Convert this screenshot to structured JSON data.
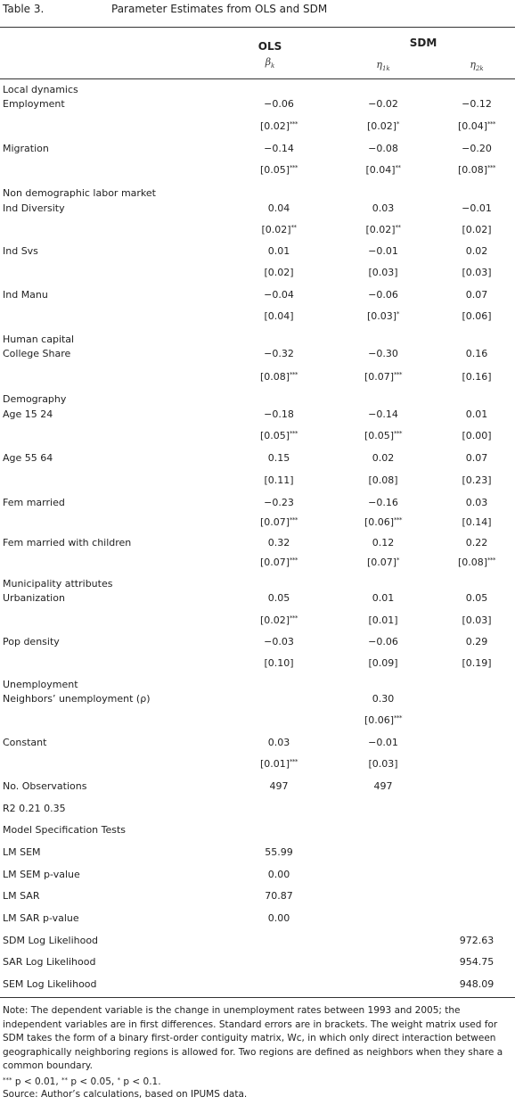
{
  "table": {
    "number": "Table 3.",
    "title": "Parameter Estimates from OLS and SDM"
  },
  "headers": {
    "ols": "OLS",
    "sdm": "SDM",
    "beta": "β",
    "beta_sub": "k",
    "eta1": "η",
    "eta1_sub": "1k",
    "eta2": "η",
    "eta2_sub": "2k"
  },
  "rows": {
    "local_dynamics": "Local dynamics",
    "employment": {
      "label": "Employment",
      "c1": "−0.06",
      "c2": "−0.02",
      "c3": "−0.12",
      "s1": "[0.02]",
      "s1s": "***",
      "s2": "[0.02]",
      "s2s": "*",
      "s3": "[0.04]",
      "s3s": "***"
    },
    "migration": {
      "label": "Migration",
      "c1": "−0.14",
      "c2": "−0.08",
      "c3": "−0.20",
      "s1": "[0.05]",
      "s1s": "***",
      "s2": "[0.04]",
      "s2s": "**",
      "s3": "[0.08]",
      "s3s": "***"
    },
    "non_demo": "Non demographic labor market",
    "ind_diversity": {
      "label": "Ind Diversity",
      "c1": "0.04",
      "c2": "0.03",
      "c3": "−0.01",
      "s1": "[0.02]",
      "s1s": "**",
      "s2": "[0.02]",
      "s2s": "**",
      "s3": "[0.02]",
      "s3s": ""
    },
    "ind_svs": {
      "label": "Ind Svs",
      "c1": "0.01",
      "c2": "−0.01",
      "c3": "0.02",
      "s1": "[0.02]",
      "s1s": "",
      "s2": "[0.03]",
      "s2s": "",
      "s3": "[0.03]",
      "s3s": ""
    },
    "ind_manu": {
      "label": "Ind Manu",
      "c1": "−0.04",
      "c2": "−0.06",
      "c3": "0.07",
      "s1": "[0.04]",
      "s1s": "",
      "s2": "[0.03]",
      "s2s": "*",
      "s3": "[0.06]",
      "s3s": ""
    },
    "human_capital": "Human capital",
    "college_share": {
      "label": "College Share",
      "c1": "−0.32",
      "c2": "−0.30",
      "c3": "0.16",
      "s1": "[0.08]",
      "s1s": "***",
      "s2": "[0.07]",
      "s2s": "***",
      "s3": "[0.16]",
      "s3s": ""
    },
    "demography": "Demography",
    "age_15_24": {
      "label": "Age 15 24",
      "c1": "−0.18",
      "c2": "−0.14",
      "c3": "0.01",
      "s1": "[0.05]",
      "s1s": "***",
      "s2": "[0.05]",
      "s2s": "***",
      "s3": "[0.00]",
      "s3s": ""
    },
    "age_55_64": {
      "label": "Age 55 64",
      "c1": "0.15",
      "c2": "0.02",
      "c3": "0.07",
      "s1": "[0.11]",
      "s1s": "",
      "s2": "[0.08]",
      "s2s": "",
      "s3": "[0.23]",
      "s3s": ""
    },
    "fem_married": {
      "label": "Fem married",
      "c1": "−0.23",
      "c2": "−0.16",
      "c3": "0.03",
      "s1": "[0.07]",
      "s1s": "***",
      "s2": "[0.06]",
      "s2s": "***",
      "s3": "[0.14]",
      "s3s": ""
    },
    "fem_married_children": {
      "label": "Fem married with children",
      "c1": "0.32",
      "c2": "0.12",
      "c3": "0.22",
      "s1": "[0.07]",
      "s1s": "***",
      "s2": "[0.07]",
      "s2s": "*",
      "s3": "[0.08]",
      "s3s": "***"
    },
    "municipality": "Municipality attributes",
    "urbanization": {
      "label": "Urbanization",
      "c1": "0.05",
      "c2": "0.01",
      "c3": "0.05",
      "s1": "[0.02]",
      "s1s": "***",
      "s2": "[0.01]",
      "s2s": "",
      "s3": "[0.03]",
      "s3s": ""
    },
    "pop_density": {
      "label": "Pop density",
      "c1": "−0.03",
      "c2": "−0.06",
      "c3": "0.29",
      "s1": "[0.10]",
      "s1s": "",
      "s2": "[0.09]",
      "s2s": "",
      "s3": "[0.19]",
      "s3s": ""
    },
    "unemployment": "Unemployment",
    "neighbors": {
      "label": "Neighbors’ unemployment (ρ)",
      "c2": "0.30",
      "s2": "[0.06]",
      "s2s": "***"
    },
    "constant": {
      "label": "Constant",
      "c1": "0.03",
      "c2": "−0.01",
      "s1": "[0.01]",
      "s1s": "***",
      "s2": "[0.03]",
      "s2s": ""
    },
    "observations": {
      "label": "No. Observations",
      "c1": "497",
      "c2": "497"
    },
    "r2": "R2 0.21 0.35",
    "model_tests": "Model Specification Tests",
    "lm_sem": {
      "label": "LM SEM",
      "c1": "55.99"
    },
    "lm_sem_p": {
      "label": "LM SEM p-value",
      "c1": "0.00"
    },
    "lm_sar": {
      "label": "LM SAR",
      "c1": "70.87"
    },
    "lm_sar_p": {
      "label": "LM SAR p-value",
      "c1": "0.00"
    },
    "sdm_ll": {
      "label": "SDM Log Likelihood",
      "c3": "972.63"
    },
    "sar_ll": {
      "label": "SAR Log Likelihood",
      "c3": "954.75"
    },
    "sem_ll": {
      "label": "SEM Log Likelihood",
      "c3": "948.09"
    }
  },
  "note": {
    "text": "Note: The dependent variable is the change in unemployment rates between 1993 and 2005; the independent variables are in first differences. Standard errors are in brackets. The weight matrix used for SDM takes the form of a binary first-order contiguity matrix, Wc, in which only direct interaction between geographically neighboring regions is allowed for. Two regions are defined as neighbors when they share a common boundary.",
    "sig1_mark": "***",
    "sig1_text": " p < 0.01, ",
    "sig2_mark": "**",
    "sig2_text": " p < 0.05, ",
    "sig3_mark": "*",
    "sig3_text": " p < 0.1."
  },
  "source": "Source: Author’s calculations, based on IPUMS data."
}
